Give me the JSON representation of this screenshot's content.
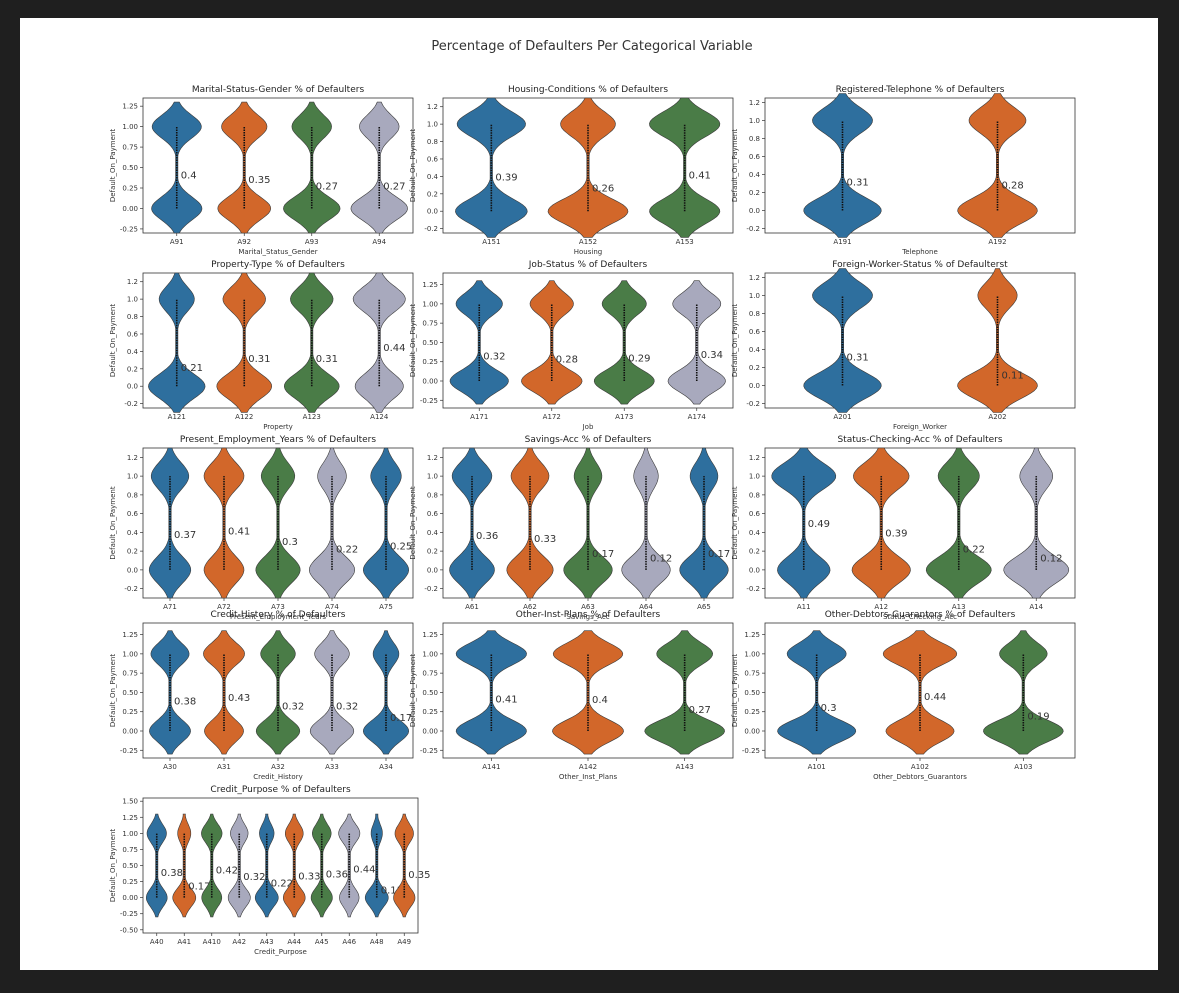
{
  "suptitle": "Percentage of Defaulters Per Categorical Variable",
  "colors": [
    "#2e6f9e",
    "#d2672a",
    "#4a7c47",
    "#a8a9bd"
  ],
  "chart_data": [
    {
      "type": "violin",
      "title": "Marital-Status-Gender % of Defaulters",
      "xlabel": "Marital_Status_Gender",
      "ylabel": "Default_On_Payment",
      "ylim": [
        -0.3,
        1.35
      ],
      "yticks": [
        "1.25",
        "1.00",
        "0.75",
        "0.50",
        "0.25",
        "0.00",
        "-0.25"
      ],
      "categories": [
        "A91",
        "A92",
        "A93",
        "A94"
      ],
      "values": [
        0.4,
        0.35,
        0.27,
        0.27
      ]
    },
    {
      "type": "violin",
      "title": "Housing-Conditions % of Defaulters",
      "xlabel": "Housing",
      "ylabel": "Default_On_Payment",
      "ylim": [
        -0.25,
        1.3
      ],
      "yticks": [
        "1.2",
        "1.0",
        "0.8",
        "0.6",
        "0.4",
        "0.2",
        "0.0",
        "-0.2"
      ],
      "categories": [
        "A151",
        "A152",
        "A153"
      ],
      "values": [
        0.39,
        0.26,
        0.41
      ]
    },
    {
      "type": "violin",
      "title": "Registered-Telephone % of Defaulters",
      "xlabel": "Telephone",
      "ylabel": "Default_On_Payment",
      "ylim": [
        -0.25,
        1.25
      ],
      "yticks": [
        "1.2",
        "1.0",
        "0.8",
        "0.6",
        "0.4",
        "0.2",
        "0.0",
        "-0.2"
      ],
      "categories": [
        "A191",
        "A192"
      ],
      "values": [
        0.31,
        0.28
      ]
    },
    {
      "type": "violin",
      "title": "Property-Type % of Defaulters",
      "xlabel": "Property",
      "ylabel": "Default_On_Payment",
      "ylim": [
        -0.25,
        1.3
      ],
      "yticks": [
        "1.2",
        "1.0",
        "0.8",
        "0.6",
        "0.4",
        "0.2",
        "0.0",
        "-0.2"
      ],
      "categories": [
        "A121",
        "A122",
        "A123",
        "A124"
      ],
      "values": [
        0.21,
        0.31,
        0.31,
        0.44
      ]
    },
    {
      "type": "violin",
      "title": "Job-Status % of Defaulters",
      "xlabel": "Job",
      "ylabel": "Default_On_Payment",
      "ylim": [
        -0.35,
        1.4
      ],
      "yticks": [
        "1.25",
        "1.00",
        "0.75",
        "0.50",
        "0.25",
        "0.00",
        "-0.25"
      ],
      "categories": [
        "A171",
        "A172",
        "A173",
        "A174"
      ],
      "values": [
        0.32,
        0.28,
        0.29,
        0.34
      ]
    },
    {
      "type": "violin",
      "title": "Foreign-Worker-Status % of Defaulterst",
      "xlabel": "Foreign_Worker",
      "ylabel": "Default_On_Payment",
      "ylim": [
        -0.25,
        1.25
      ],
      "yticks": [
        "1.2",
        "1.0",
        "0.8",
        "0.6",
        "0.4",
        "0.2",
        "0.0",
        "-0.2"
      ],
      "categories": [
        "A201",
        "A202"
      ],
      "values": [
        0.31,
        0.11
      ]
    },
    {
      "type": "violin",
      "title": "Present_Employment_Years % of Defaulters",
      "xlabel": "Present_Employment_Years",
      "ylabel": "Default_On_Payment",
      "ylim": [
        -0.3,
        1.3
      ],
      "yticks": [
        "1.2",
        "1.0",
        "0.8",
        "0.6",
        "0.4",
        "0.2",
        "0.0",
        "-0.2"
      ],
      "categories": [
        "A71",
        "A72",
        "A73",
        "A74",
        "A75"
      ],
      "values": [
        0.37,
        0.41,
        0.3,
        0.22,
        0.25
      ]
    },
    {
      "type": "violin",
      "title": "Savings-Acc % of Defaulters",
      "xlabel": "Savings_Acc",
      "ylabel": "Default_On_Payment",
      "ylim": [
        -0.3,
        1.3
      ],
      "yticks": [
        "1.2",
        "1.0",
        "0.8",
        "0.6",
        "0.4",
        "0.2",
        "0.0",
        "-0.2"
      ],
      "categories": [
        "A61",
        "A62",
        "A63",
        "A64",
        "A65"
      ],
      "values": [
        0.36,
        0.33,
        0.17,
        0.12,
        0.17
      ]
    },
    {
      "type": "violin",
      "title": "Status-Checking-Acc % of Defaulters",
      "xlabel": "Status_Checking_Acc",
      "ylabel": "Default_On_Payment",
      "ylim": [
        -0.3,
        1.3
      ],
      "yticks": [
        "1.2",
        "1.0",
        "0.8",
        "0.6",
        "0.4",
        "0.2",
        "0.0",
        "-0.2"
      ],
      "categories": [
        "A11",
        "A12",
        "A13",
        "A14"
      ],
      "values": [
        0.49,
        0.39,
        0.22,
        0.12
      ]
    },
    {
      "type": "violin",
      "title": "Credit-History % of Defaulters",
      "xlabel": "Credit_History",
      "ylabel": "Default_On_Payment",
      "ylim": [
        -0.35,
        1.4
      ],
      "yticks": [
        "1.25",
        "1.00",
        "0.75",
        "0.50",
        "0.25",
        "0.00",
        "-0.25"
      ],
      "categories": [
        "A30",
        "A31",
        "A32",
        "A33",
        "A34"
      ],
      "values": [
        0.38,
        0.43,
        0.32,
        0.32,
        0.17
      ]
    },
    {
      "type": "violin",
      "title": "Other-Inst-Plans % of Defaulters",
      "xlabel": "Other_Inst_Plans",
      "ylabel": "Default_On_Payment",
      "ylim": [
        -0.35,
        1.4
      ],
      "yticks": [
        "1.25",
        "1.00",
        "0.75",
        "0.50",
        "0.25",
        "0.00",
        "-0.25"
      ],
      "categories": [
        "A141",
        "A142",
        "A143"
      ],
      "values": [
        0.41,
        0.4,
        0.27
      ]
    },
    {
      "type": "violin",
      "title": "Other-Debtors-Guarantors % of Defaulters",
      "xlabel": "Other_Debtors_Guarantors",
      "ylabel": "Default_On_Payment",
      "ylim": [
        -0.35,
        1.4
      ],
      "yticks": [
        "1.25",
        "1.00",
        "0.75",
        "0.50",
        "0.25",
        "0.00",
        "-0.25"
      ],
      "categories": [
        "A101",
        "A102",
        "A103"
      ],
      "values": [
        0.3,
        0.44,
        0.19
      ]
    },
    {
      "type": "violin",
      "title": "Credit_Purpose % of Defaulters",
      "xlabel": "Credit_Purpose",
      "ylabel": "Default_On_Payment",
      "ylim": [
        -0.55,
        1.55
      ],
      "yticks": [
        "1.50",
        "1.25",
        "1.00",
        "0.75",
        "0.50",
        "0.25",
        "0.00",
        "-0.25",
        "-0.50"
      ],
      "categories": [
        "A40",
        "A41",
        "A410",
        "A42",
        "A43",
        "A44",
        "A45",
        "A46",
        "A48",
        "A49"
      ],
      "values": [
        0.38,
        0.17,
        0.42,
        0.32,
        0.22,
        0.33,
        0.36,
        0.44,
        0.11,
        0.35
      ]
    }
  ]
}
